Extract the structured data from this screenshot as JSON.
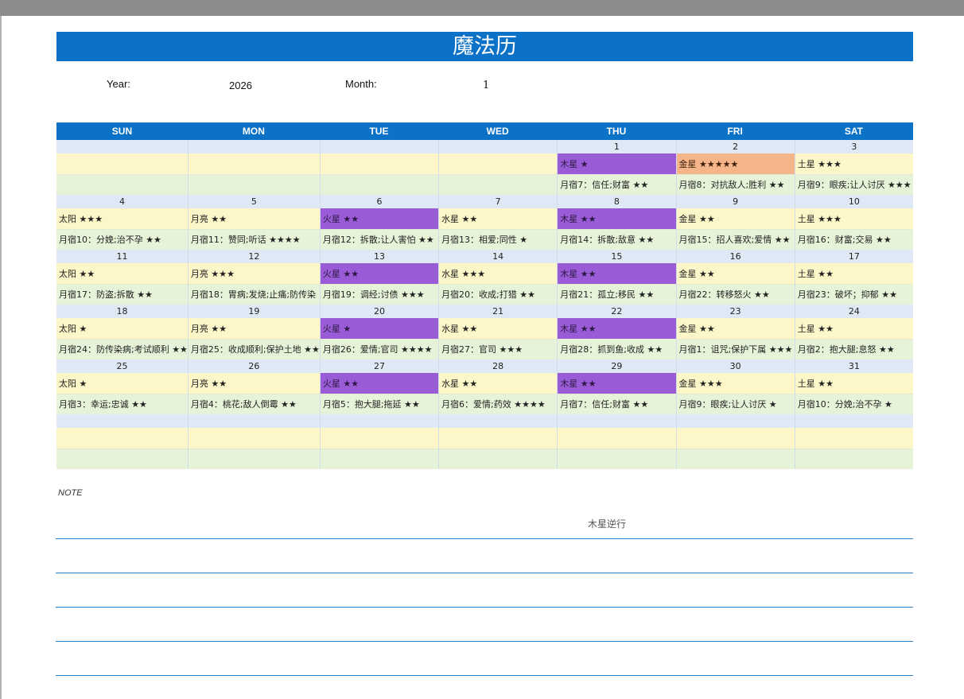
{
  "title": "魔法历",
  "year_label": "Year:",
  "year_value": "2026",
  "month_label": "Month:",
  "month_value": "1",
  "weekdays": [
    "SUN",
    "MON",
    "TUE",
    "WED",
    "THU",
    "FRI",
    "SAT"
  ],
  "cells": [
    {
      "day": "",
      "planet": "",
      "mansion": "",
      "style": ""
    },
    {
      "day": "",
      "planet": "",
      "mansion": "",
      "style": ""
    },
    {
      "day": "",
      "planet": "",
      "mansion": "",
      "style": ""
    },
    {
      "day": "",
      "planet": "",
      "mansion": "",
      "style": ""
    },
    {
      "day": "1",
      "planet": "木星 ★",
      "mansion": "月宿7：信任;财富 ★★",
      "style": "purple"
    },
    {
      "day": "2",
      "planet": "金星 ★★★★★",
      "mansion": "月宿8：对抗敌人;胜利 ★★",
      "style": "orange"
    },
    {
      "day": "3",
      "planet": "土星 ★★★",
      "mansion": "月宿9：眼疾;让人讨厌 ★★★",
      "style": ""
    },
    {
      "day": "4",
      "planet": "太阳 ★★★",
      "mansion": "月宿10：分娩;治不孕 ★★",
      "style": ""
    },
    {
      "day": "5",
      "planet": "月亮 ★★",
      "mansion": "月宿11：赞同;听话 ★★★★",
      "style": ""
    },
    {
      "day": "6",
      "planet": "火星 ★★",
      "mansion": "月宿12：拆散;让人害怕 ★★",
      "style": "purple"
    },
    {
      "day": "7",
      "planet": "水星 ★★",
      "mansion": "月宿13：相爱;同性 ★",
      "style": ""
    },
    {
      "day": "8",
      "planet": "木星 ★★",
      "mansion": "月宿14：拆散;敌意 ★★",
      "style": "purple"
    },
    {
      "day": "9",
      "planet": "金星 ★★",
      "mansion": "月宿15：招人喜欢;爱情 ★★",
      "style": ""
    },
    {
      "day": "10",
      "planet": "土星 ★★★",
      "mansion": "月宿16：财富;交易 ★★",
      "style": ""
    },
    {
      "day": "11",
      "planet": "太阳 ★★",
      "mansion": "月宿17：防盗;拆散 ★★",
      "style": ""
    },
    {
      "day": "12",
      "planet": "月亮 ★★★",
      "mansion": "月宿18：胃病;发烧;止痛;防传染",
      "style": ""
    },
    {
      "day": "13",
      "planet": "火星 ★★",
      "mansion": "月宿19：调经;讨债 ★★★",
      "style": "purple"
    },
    {
      "day": "14",
      "planet": "水星 ★★★",
      "mansion": "月宿20：收成;打猎 ★★",
      "style": ""
    },
    {
      "day": "15",
      "planet": "木星 ★★",
      "mansion": "月宿21：孤立;移民 ★★",
      "style": "purple"
    },
    {
      "day": "16",
      "planet": "金星 ★★",
      "mansion": "月宿22：转移怒火 ★★",
      "style": ""
    },
    {
      "day": "17",
      "planet": "土星 ★★",
      "mansion": "月宿23：破坏；抑郁 ★★",
      "style": ""
    },
    {
      "day": "18",
      "planet": "太阳 ★",
      "mansion": "月宿24：防传染病;考试顺利 ★★",
      "style": ""
    },
    {
      "day": "19",
      "planet": "月亮 ★★",
      "mansion": "月宿25：收成顺利;保护土地 ★★",
      "style": ""
    },
    {
      "day": "20",
      "planet": "火星 ★",
      "mansion": "月宿26：爱情;官司 ★★★★",
      "style": "purple"
    },
    {
      "day": "21",
      "planet": "水星 ★★",
      "mansion": "月宿27：官司 ★★★",
      "style": ""
    },
    {
      "day": "22",
      "planet": "木星 ★★",
      "mansion": "月宿28：抓到鱼;收成 ★★",
      "style": "purple"
    },
    {
      "day": "23",
      "planet": "金星 ★★",
      "mansion": "月宿1：诅咒;保护下属 ★★★",
      "style": ""
    },
    {
      "day": "24",
      "planet": "土星 ★★",
      "mansion": "月宿2：抱大腿;息怒 ★★",
      "style": ""
    },
    {
      "day": "25",
      "planet": "太阳 ★",
      "mansion": "月宿3：幸运;忠诚 ★★",
      "style": ""
    },
    {
      "day": "26",
      "planet": "月亮 ★★",
      "mansion": "月宿4：桃花;敌人倒霉 ★★",
      "style": ""
    },
    {
      "day": "27",
      "planet": "火星 ★★",
      "mansion": "月宿5：抱大腿;拖延 ★★",
      "style": "purple"
    },
    {
      "day": "28",
      "planet": "水星 ★★",
      "mansion": "月宿6：爱情;药效 ★★★★",
      "style": ""
    },
    {
      "day": "29",
      "planet": "木星 ★★",
      "mansion": "月宿7：信任;财富 ★★",
      "style": "purple"
    },
    {
      "day": "30",
      "planet": "金星 ★★★",
      "mansion": "月宿9：眼疾;让人讨厌 ★",
      "style": ""
    },
    {
      "day": "31",
      "planet": "土星 ★★",
      "mansion": "月宿10：分娩;治不孕 ★",
      "style": ""
    },
    {
      "day": "",
      "planet": "",
      "mansion": "",
      "style": ""
    },
    {
      "day": "",
      "planet": "",
      "mansion": "",
      "style": ""
    },
    {
      "day": "",
      "planet": "",
      "mansion": "",
      "style": ""
    },
    {
      "day": "",
      "planet": "",
      "mansion": "",
      "style": ""
    },
    {
      "day": "",
      "planet": "",
      "mansion": "",
      "style": ""
    },
    {
      "day": "",
      "planet": "",
      "mansion": "",
      "style": ""
    },
    {
      "day": "",
      "planet": "",
      "mansion": "",
      "style": ""
    }
  ],
  "note_label": "NOTE",
  "note_text": "木星逆行",
  "colors": {
    "header_blue": "#0b72c8",
    "highlight_purple": "#9a5cd6",
    "highlight_orange": "#f6b48a",
    "row_day": "#dfe9f5",
    "row_planet": "#fdf6c8",
    "row_mansion": "#e6f3d8"
  }
}
